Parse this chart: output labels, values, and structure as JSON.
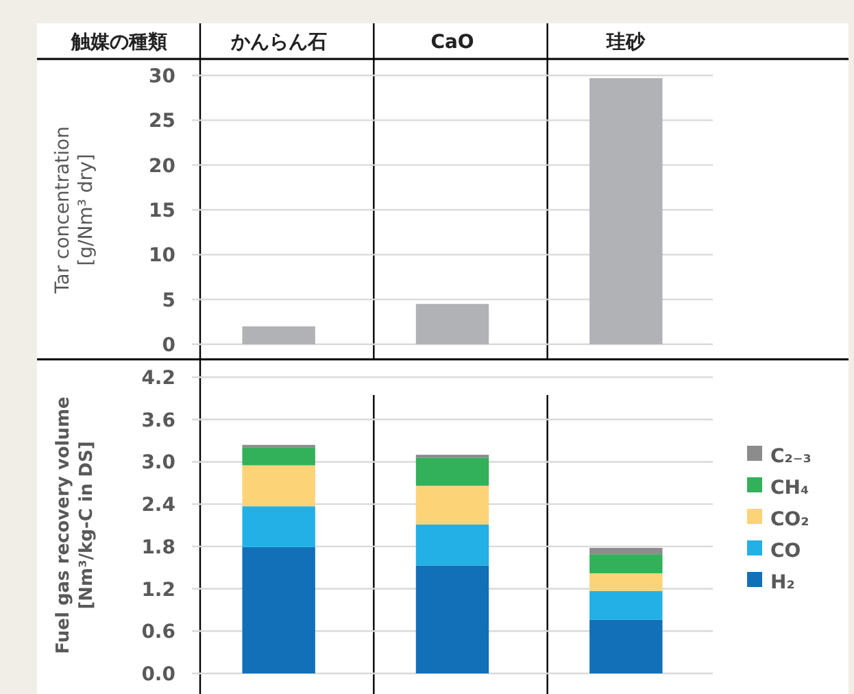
{
  "chart_data": [
    {
      "type": "bar",
      "xlabel": "触媒の種類",
      "ylabel": "Tar concentration\n[g/Nm³ dry]",
      "categories": [
        "かんらん石",
        "CaO",
        "珪砂"
      ],
      "values": [
        2.0,
        4.5,
        29.7
      ],
      "color": "#b1b2b5",
      "ylim": [
        0,
        30
      ],
      "yticks": [
        0,
        5,
        10,
        15,
        20,
        25,
        30
      ],
      "grid": "y",
      "legend": false
    },
    {
      "type": "bar",
      "stacked": true,
      "ylabel": "Fuel gas recovery volume\n[Nm³/kg-C in DS]",
      "categories": [
        null,
        null,
        null
      ],
      "ylim": [
        0,
        4.2
      ],
      "yticks": [
        {
          "value": 0,
          "label": "0.0"
        },
        0.6,
        1.2,
        1.8,
        2.4,
        {
          "value": 3,
          "label": "3.0"
        },
        3.6,
        4.2
      ],
      "grid": "y",
      "legend": "right",
      "series": [
        {
          "name": "H₂",
          "color": "#1170b8",
          "values": [
            1.79,
            1.53,
            0.76
          ]
        },
        {
          "name": "CO",
          "color": "#22b0e6",
          "values": [
            0.58,
            0.58,
            0.41
          ]
        },
        {
          "name": "CO₂",
          "color": "#fdd377",
          "values": [
            0.58,
            0.55,
            0.25
          ]
        },
        {
          "name": "CH₄",
          "color": "#33b05a",
          "values": [
            0.25,
            0.4,
            0.27
          ]
        },
        {
          "name": "C₂₋₃",
          "color": "#8c8c8c",
          "values": [
            0.04,
            0.04,
            0.09
          ]
        }
      ]
    }
  ]
}
